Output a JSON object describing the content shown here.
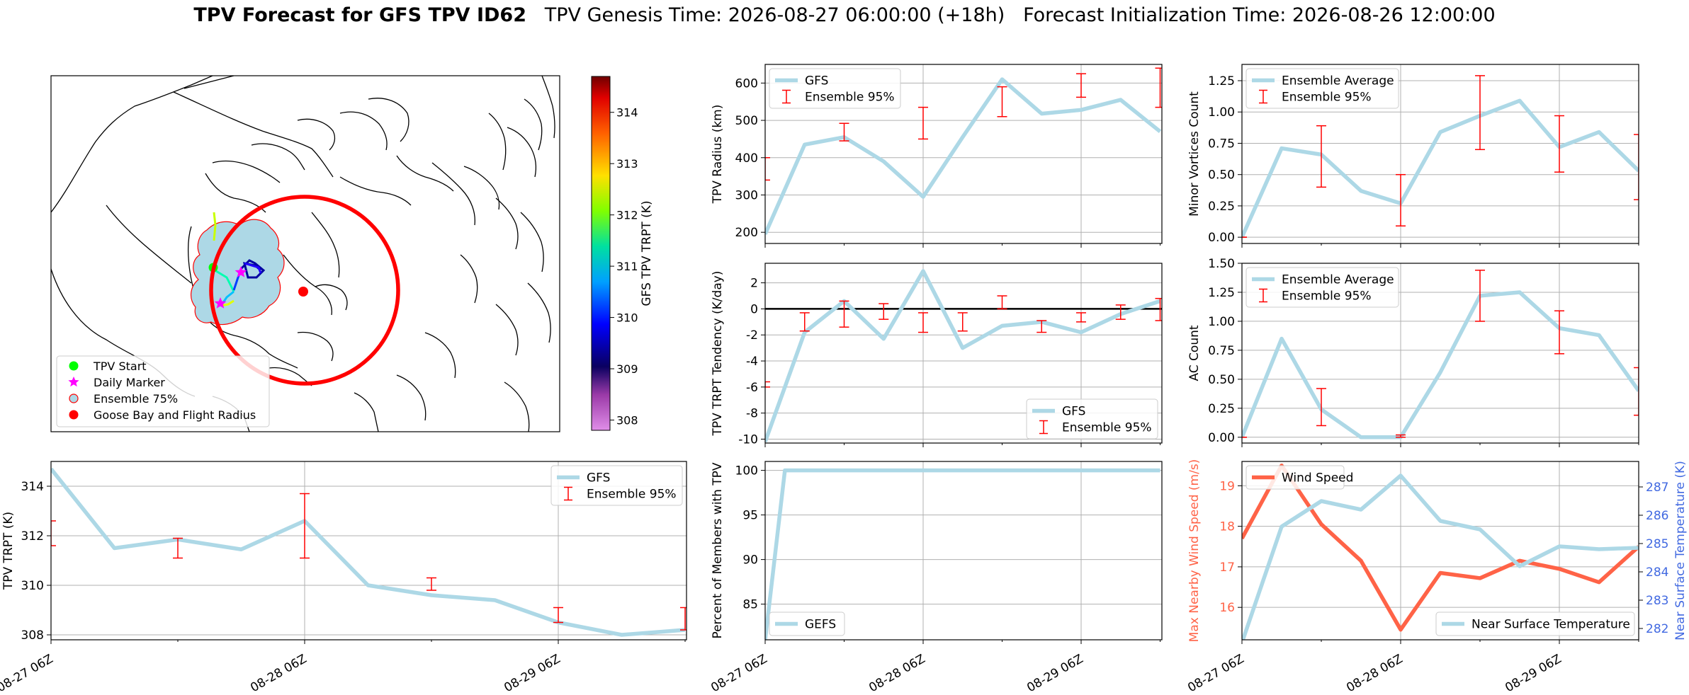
{
  "suptitle": {
    "bold": "TPV Forecast for GFS TPV ID62",
    "genesis": "TPV Genesis Time: 2026-08-27 06:00:00 (+18h)",
    "init": "Forecast Initialization Time: 2026-08-26 12:00:00"
  },
  "time_ticks": [
    "08-27 06Z",
    "08-28 06Z",
    "08-29 06Z"
  ],
  "colors": {
    "line": "#add8e6",
    "errorbar": "#ff0000",
    "wind": "#ff6347",
    "temp_axis": "#4169e1",
    "grid": "#b0b0b0"
  },
  "chart_data": [
    {
      "id": "map",
      "type": "map",
      "legend": [
        "TPV Start",
        "Daily Marker",
        "Ensemble 75%",
        "Goose Bay and Flight Radius"
      ],
      "legend_colors": [
        "#00ff00",
        "#ff00ff",
        "#add8e6",
        "#ff0000"
      ],
      "colorbar": {
        "label": "GFS TPV TRPT (K)",
        "ticks": [
          308,
          309,
          310,
          311,
          312,
          313,
          314
        ],
        "range": [
          307.8,
          314.7
        ]
      }
    },
    {
      "id": "radius",
      "type": "line",
      "ylabel": "TPV Radius (km)",
      "ylim": [
        170,
        650
      ],
      "yticks": [
        200,
        300,
        400,
        500,
        600
      ],
      "series": [
        {
          "name": "GFS",
          "x": [
            0,
            6,
            12,
            18,
            24,
            30,
            36,
            42,
            48,
            54,
            60
          ],
          "values": [
            195,
            435,
            455,
            390,
            295,
            455,
            610,
            518,
            528,
            555,
            470
          ]
        }
      ],
      "errorbars": {
        "name": "Ensemble 95%",
        "x": [
          0,
          12,
          24,
          36,
          48,
          60
        ],
        "low": [
          340,
          445,
          450,
          510,
          562,
          535
        ],
        "high": [
          400,
          492,
          535,
          590,
          625,
          640
        ]
      },
      "legend": "upper left"
    },
    {
      "id": "minor",
      "type": "line",
      "ylabel": "Minor Vortices Count",
      "ylim": [
        -0.05,
        1.38
      ],
      "yticks": [
        0.0,
        0.25,
        0.5,
        0.75,
        1.0,
        1.25
      ],
      "series": [
        {
          "name": "Ensemble Average",
          "x": [
            0,
            6,
            12,
            18,
            24,
            30,
            36,
            42,
            48,
            54,
            60
          ],
          "values": [
            0.0,
            0.71,
            0.66,
            0.37,
            0.27,
            0.84,
            0.97,
            1.09,
            0.72,
            0.84,
            0.53
          ]
        }
      ],
      "errorbars": {
        "name": "Ensemble 95%",
        "x": [
          0,
          12,
          24,
          36,
          48,
          60
        ],
        "low": [
          0.0,
          0.4,
          0.09,
          0.7,
          0.52,
          0.3
        ],
        "high": [
          0.0,
          0.89,
          0.5,
          1.29,
          0.97,
          0.82
        ]
      },
      "legend": "upper left"
    },
    {
      "id": "tendency",
      "type": "line",
      "ylabel": "TPV TRPT Tendency (K/day)",
      "ylim": [
        -10.3,
        3.5
      ],
      "yticks": [
        -10,
        -8,
        -6,
        -4,
        -2,
        0,
        2
      ],
      "zero_line": true,
      "series": [
        {
          "name": "GFS",
          "x": [
            0,
            6,
            12,
            18,
            24,
            30,
            36,
            42,
            48,
            54,
            60
          ],
          "values": [
            -10.2,
            -1.8,
            0.6,
            -2.3,
            2.9,
            -3.0,
            -1.3,
            -1.0,
            -1.8,
            -0.4,
            0.6
          ]
        }
      ],
      "errorbars": {
        "name": "Ensemble 95%",
        "x": [
          0,
          6,
          12,
          18,
          24,
          30,
          36,
          42,
          48,
          54,
          60
        ],
        "low": [
          -6.0,
          -1.7,
          -1.4,
          -0.8,
          -1.8,
          -1.7,
          0.0,
          -1.8,
          -1.0,
          -0.8,
          -0.9
        ],
        "high": [
          -5.6,
          -0.3,
          0.6,
          0.4,
          -0.3,
          -0.3,
          1.0,
          -0.9,
          -0.3,
          0.3,
          0.8
        ]
      },
      "legend": "lower right"
    },
    {
      "id": "ac",
      "type": "line",
      "ylabel": "AC Count",
      "ylim": [
        -0.05,
        1.5
      ],
      "yticks": [
        0.0,
        0.25,
        0.5,
        0.75,
        1.0,
        1.25,
        1.5
      ],
      "series": [
        {
          "name": "Ensemble Average",
          "x": [
            0,
            6,
            12,
            18,
            24,
            30,
            36,
            42,
            48,
            54,
            60
          ],
          "values": [
            0.0,
            0.85,
            0.24,
            0.0,
            0.0,
            0.56,
            1.22,
            1.25,
            0.94,
            0.88,
            0.4
          ]
        }
      ],
      "errorbars": {
        "name": "Ensemble 95%",
        "x": [
          0,
          12,
          24,
          36,
          48,
          60
        ],
        "low": [
          0.0,
          0.1,
          0.0,
          1.0,
          0.72,
          0.19
        ],
        "high": [
          0.0,
          0.42,
          0.02,
          1.44,
          1.09,
          0.6
        ]
      },
      "legend": "upper left"
    },
    {
      "id": "trpt",
      "type": "line",
      "ylabel": "TPV TRPT (K)",
      "ylim": [
        307.8,
        315.0
      ],
      "yticks": [
        308,
        310,
        312,
        314
      ],
      "series": [
        {
          "name": "GFS",
          "x": [
            0,
            6,
            12,
            18,
            24,
            30,
            36,
            42,
            48,
            54,
            60
          ],
          "values": [
            314.7,
            311.5,
            311.85,
            311.45,
            312.6,
            310.0,
            309.6,
            309.4,
            308.5,
            308.0,
            308.2
          ]
        }
      ],
      "errorbars": {
        "name": "Ensemble 95%",
        "x": [
          0,
          12,
          24,
          36,
          48,
          60
        ],
        "low": [
          311.6,
          311.1,
          311.1,
          309.8,
          308.5,
          308.2
        ],
        "high": [
          312.6,
          311.9,
          313.7,
          310.3,
          309.1,
          309.1
        ]
      },
      "legend": "upper right"
    },
    {
      "id": "percent",
      "type": "line",
      "ylabel": "Percent of Members with TPV",
      "ylim": [
        81,
        101
      ],
      "yticks": [
        85,
        90,
        95,
        100
      ],
      "series": [
        {
          "name": "GEFS",
          "x": [
            0,
            3,
            6,
            60
          ],
          "values": [
            81,
            100,
            100,
            100
          ]
        }
      ],
      "legend": "lower left"
    },
    {
      "id": "wind",
      "type": "line",
      "ylabel": "Max Nearby Wind Speed (m/s)",
      "ylim": [
        15.2,
        19.6
      ],
      "yticks": [
        16,
        17,
        18,
        19
      ],
      "series": [
        {
          "name": "Wind Speed",
          "x": [
            0,
            6,
            12,
            18,
            24,
            30,
            36,
            42,
            48,
            54,
            60
          ],
          "values": [
            17.7,
            19.5,
            18.05,
            17.15,
            15.45,
            16.85,
            16.72,
            17.15,
            16.95,
            16.62,
            17.5
          ]
        }
      ],
      "y2label": "Near Surface Temperature (K)",
      "y2lim": [
        281.6,
        287.9
      ],
      "y2ticks": [
        282,
        283,
        284,
        285,
        286,
        287
      ],
      "series2": [
        {
          "name": "Near Surface Temperature",
          "x": [
            0,
            6,
            12,
            18,
            24,
            30,
            36,
            42,
            48,
            54,
            60
          ],
          "values": [
            281.5,
            285.6,
            286.5,
            286.2,
            287.4,
            285.8,
            285.5,
            284.2,
            284.9,
            284.8,
            284.85
          ]
        }
      ],
      "legend": "upper left / lower right"
    }
  ]
}
